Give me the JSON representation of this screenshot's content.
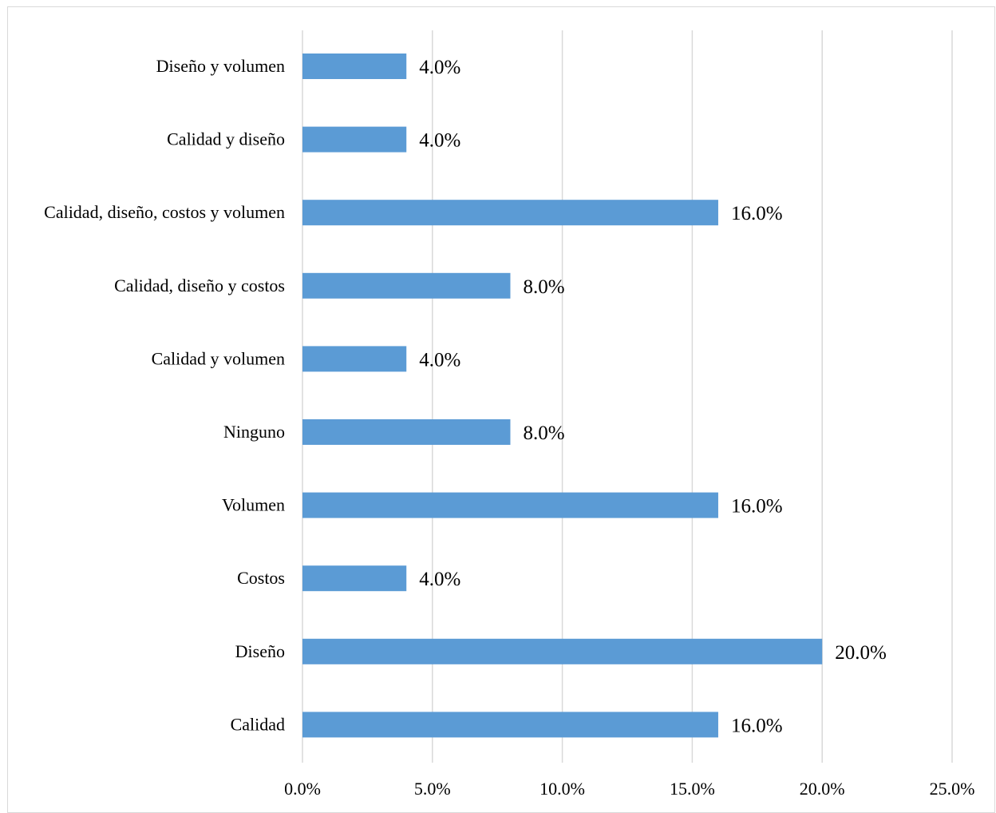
{
  "chart_data": {
    "type": "bar",
    "orientation": "horizontal",
    "categories": [
      "Diseño y volumen",
      "Calidad y diseño",
      "Calidad, diseño, costos y volumen",
      "Calidad, diseño y costos",
      "Calidad y volumen",
      "Ninguno",
      "Volumen",
      "Costos",
      "Diseño",
      "Calidad"
    ],
    "values": [
      4.0,
      4.0,
      16.0,
      8.0,
      4.0,
      8.0,
      16.0,
      4.0,
      20.0,
      16.0
    ],
    "data_labels": [
      "4.0%",
      "4.0%",
      "16.0%",
      "8.0%",
      "4.0%",
      "8.0%",
      "16.0%",
      "4.0%",
      "20.0%",
      "16.0%"
    ],
    "xlim": [
      0,
      25
    ],
    "x_ticks": [
      0,
      5,
      10,
      15,
      20,
      25
    ],
    "x_tick_labels": [
      "0.0%",
      "5.0%",
      "10.0%",
      "15.0%",
      "20.0%",
      "25.0%"
    ],
    "title": "",
    "xlabel": "",
    "ylabel": "",
    "grid": true,
    "legend": "none",
    "colors": {
      "bar": "#5b9bd5",
      "grid": "#d9d9d9"
    }
  }
}
